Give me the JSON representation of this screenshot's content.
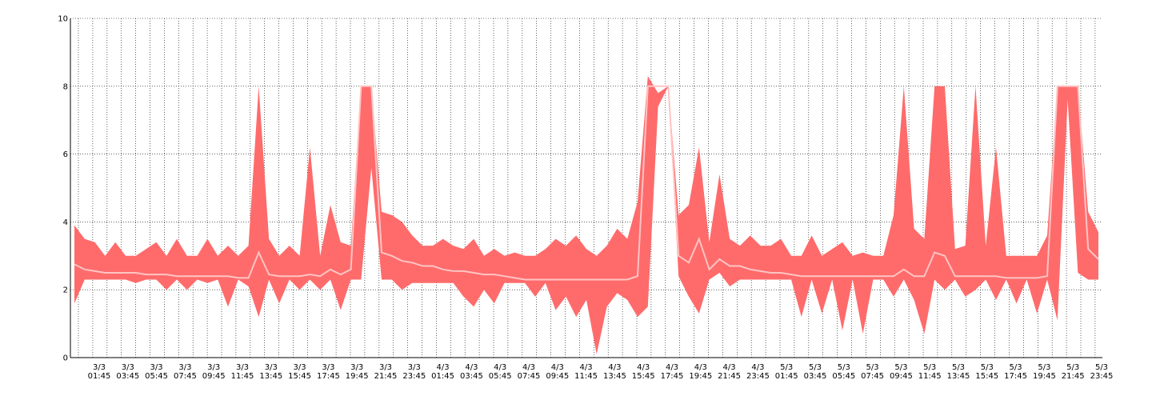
{
  "chart_data": {
    "type": "area",
    "title": "",
    "xlabel": "",
    "ylabel": "",
    "ylim": [
      0,
      10
    ],
    "yticks": [
      0,
      2,
      4,
      6,
      8,
      10
    ],
    "grid": true,
    "legend": "none",
    "colors": {
      "band": "#ff6b6b",
      "line": "#ffc4c4",
      "grid": "#000000",
      "axis": "#000000"
    },
    "x_ticks": [
      "3/3 01:45",
      "3/3 03:45",
      "3/3 05:45",
      "3/3 07:45",
      "3/3 09:45",
      "3/3 11:45",
      "3/3 13:45",
      "3/3 15:45",
      "3/3 17:45",
      "3/3 19:45",
      "3/3 21:45",
      "3/3 23:45",
      "4/3 01:45",
      "4/3 03:45",
      "4/3 05:45",
      "4/3 07:45",
      "4/3 09:45",
      "4/3 11:45",
      "4/3 13:45",
      "4/3 15:45",
      "4/3 17:45",
      "4/3 19:45",
      "4/3 21:45",
      "4/3 23:45",
      "5/3 01:45",
      "5/3 03:45",
      "5/3 05:45",
      "5/3 07:45",
      "5/3 09:45",
      "5/3 11:45",
      "5/3 13:45",
      "5/3 15:45",
      "5/3 17:45",
      "5/3 19:45",
      "5/3 21:45",
      "5/3 23:45"
    ],
    "series": [
      {
        "role": "max",
        "points": [
          [
            0,
            3.9
          ],
          [
            1,
            3.5
          ],
          [
            2,
            3.4
          ],
          [
            3,
            3.0
          ],
          [
            4,
            3.4
          ],
          [
            5,
            3.0
          ],
          [
            6,
            3.0
          ],
          [
            7,
            3.2
          ],
          [
            8,
            3.4
          ],
          [
            9,
            3.0
          ],
          [
            10,
            3.5
          ],
          [
            11,
            3.0
          ],
          [
            12,
            3.0
          ],
          [
            13,
            3.5
          ],
          [
            14,
            3.0
          ],
          [
            15,
            3.3
          ],
          [
            16,
            3.0
          ],
          [
            17,
            3.3
          ],
          [
            18,
            8.0
          ],
          [
            19,
            3.5
          ],
          [
            20,
            3.0
          ],
          [
            21,
            3.3
          ],
          [
            22,
            3.0
          ],
          [
            23,
            6.2
          ],
          [
            24,
            3.0
          ],
          [
            25,
            4.5
          ],
          [
            26,
            3.4
          ],
          [
            27,
            3.3
          ],
          [
            28,
            8.0
          ],
          [
            29,
            8.0
          ],
          [
            30,
            4.3
          ],
          [
            31,
            4.2
          ],
          [
            32,
            4.0
          ],
          [
            33,
            3.6
          ],
          [
            34,
            3.3
          ],
          [
            35,
            3.3
          ],
          [
            36,
            3.5
          ],
          [
            37,
            3.3
          ],
          [
            38,
            3.2
          ],
          [
            39,
            3.5
          ],
          [
            40,
            3.0
          ],
          [
            41,
            3.2
          ],
          [
            42,
            3.0
          ],
          [
            43,
            3.1
          ],
          [
            44,
            3.0
          ],
          [
            45,
            3.0
          ],
          [
            46,
            3.2
          ],
          [
            47,
            3.5
          ],
          [
            48,
            3.3
          ],
          [
            49,
            3.6
          ],
          [
            50,
            3.2
          ],
          [
            51,
            3.0
          ],
          [
            52,
            3.3
          ],
          [
            53,
            3.8
          ],
          [
            54,
            3.5
          ],
          [
            55,
            4.6
          ],
          [
            56,
            8.3
          ],
          [
            57,
            7.8
          ],
          [
            58,
            8.0
          ],
          [
            59,
            4.2
          ],
          [
            60,
            4.5
          ],
          [
            61,
            6.2
          ],
          [
            62,
            3.4
          ],
          [
            63,
            5.4
          ],
          [
            64,
            3.5
          ],
          [
            65,
            3.3
          ],
          [
            66,
            3.6
          ],
          [
            67,
            3.3
          ],
          [
            68,
            3.3
          ],
          [
            69,
            3.5
          ],
          [
            70,
            3.0
          ],
          [
            71,
            3.0
          ],
          [
            72,
            3.6
          ],
          [
            73,
            3.0
          ],
          [
            74,
            3.2
          ],
          [
            75,
            3.4
          ],
          [
            76,
            3.0
          ],
          [
            77,
            3.1
          ],
          [
            78,
            3.0
          ],
          [
            79,
            3.0
          ],
          [
            80,
            4.2
          ],
          [
            81,
            8.0
          ],
          [
            82,
            3.8
          ],
          [
            83,
            3.5
          ],
          [
            84,
            8.0
          ],
          [
            85,
            8.0
          ],
          [
            86,
            3.2
          ],
          [
            87,
            3.3
          ],
          [
            88,
            8.0
          ],
          [
            89,
            3.3
          ],
          [
            90,
            6.2
          ],
          [
            91,
            3.0
          ],
          [
            92,
            3.0
          ],
          [
            93,
            3.0
          ],
          [
            94,
            3.0
          ],
          [
            95,
            3.6
          ],
          [
            96,
            8.0
          ],
          [
            97,
            8.0
          ],
          [
            98,
            8.0
          ],
          [
            99,
            4.3
          ],
          [
            100,
            3.7
          ]
        ]
      },
      {
        "role": "min",
        "points": [
          [
            0,
            1.6
          ],
          [
            1,
            2.3
          ],
          [
            2,
            2.3
          ],
          [
            3,
            2.3
          ],
          [
            4,
            2.3
          ],
          [
            5,
            2.3
          ],
          [
            6,
            2.2
          ],
          [
            7,
            2.3
          ],
          [
            8,
            2.3
          ],
          [
            9,
            2.0
          ],
          [
            10,
            2.3
          ],
          [
            11,
            2.0
          ],
          [
            12,
            2.3
          ],
          [
            13,
            2.2
          ],
          [
            14,
            2.3
          ],
          [
            15,
            1.5
          ],
          [
            16,
            2.3
          ],
          [
            17,
            2.1
          ],
          [
            18,
            1.2
          ],
          [
            19,
            2.3
          ],
          [
            20,
            1.6
          ],
          [
            21,
            2.3
          ],
          [
            22,
            2.0
          ],
          [
            23,
            2.3
          ],
          [
            24,
            2.0
          ],
          [
            25,
            2.3
          ],
          [
            26,
            1.4
          ],
          [
            27,
            2.3
          ],
          [
            28,
            2.3
          ],
          [
            29,
            5.6
          ],
          [
            30,
            2.3
          ],
          [
            31,
            2.3
          ],
          [
            32,
            2.0
          ],
          [
            33,
            2.2
          ],
          [
            34,
            2.2
          ],
          [
            35,
            2.2
          ],
          [
            36,
            2.2
          ],
          [
            37,
            2.2
          ],
          [
            38,
            1.8
          ],
          [
            39,
            1.5
          ],
          [
            40,
            2.0
          ],
          [
            41,
            1.6
          ],
          [
            42,
            2.2
          ],
          [
            43,
            2.2
          ],
          [
            44,
            2.2
          ],
          [
            45,
            1.8
          ],
          [
            46,
            2.2
          ],
          [
            47,
            1.4
          ],
          [
            48,
            1.8
          ],
          [
            49,
            1.2
          ],
          [
            50,
            1.7
          ],
          [
            51,
            0.1
          ],
          [
            52,
            1.5
          ],
          [
            53,
            1.9
          ],
          [
            54,
            1.7
          ],
          [
            55,
            1.2
          ],
          [
            56,
            1.5
          ],
          [
            57,
            7.4
          ],
          [
            58,
            8.0
          ],
          [
            59,
            2.4
          ],
          [
            60,
            1.8
          ],
          [
            61,
            1.3
          ],
          [
            62,
            2.3
          ],
          [
            63,
            2.5
          ],
          [
            64,
            2.1
          ],
          [
            65,
            2.3
          ],
          [
            66,
            2.3
          ],
          [
            67,
            2.3
          ],
          [
            68,
            2.3
          ],
          [
            69,
            2.3
          ],
          [
            70,
            2.3
          ],
          [
            71,
            1.2
          ],
          [
            72,
            2.3
          ],
          [
            73,
            1.3
          ],
          [
            74,
            2.3
          ],
          [
            75,
            0.8
          ],
          [
            76,
            2.3
          ],
          [
            77,
            0.7
          ],
          [
            78,
            2.3
          ],
          [
            79,
            2.3
          ],
          [
            80,
            1.8
          ],
          [
            81,
            2.3
          ],
          [
            82,
            1.7
          ],
          [
            83,
            0.7
          ],
          [
            84,
            2.3
          ],
          [
            85,
            2.0
          ],
          [
            86,
            2.3
          ],
          [
            87,
            1.8
          ],
          [
            88,
            2.0
          ],
          [
            89,
            2.3
          ],
          [
            90,
            1.7
          ],
          [
            91,
            2.3
          ],
          [
            92,
            1.6
          ],
          [
            93,
            2.3
          ],
          [
            94,
            1.3
          ],
          [
            95,
            2.3
          ],
          [
            96,
            1.1
          ],
          [
            97,
            7.6
          ],
          [
            98,
            2.5
          ],
          [
            99,
            2.3
          ],
          [
            100,
            2.3
          ]
        ]
      },
      {
        "role": "average",
        "points": [
          [
            0,
            2.75
          ],
          [
            1,
            2.6
          ],
          [
            2,
            2.55
          ],
          [
            3,
            2.5
          ],
          [
            4,
            2.5
          ],
          [
            5,
            2.5
          ],
          [
            6,
            2.5
          ],
          [
            7,
            2.45
          ],
          [
            8,
            2.45
          ],
          [
            9,
            2.45
          ],
          [
            10,
            2.4
          ],
          [
            11,
            2.4
          ],
          [
            12,
            2.4
          ],
          [
            13,
            2.4
          ],
          [
            14,
            2.4
          ],
          [
            15,
            2.4
          ],
          [
            16,
            2.35
          ],
          [
            17,
            2.35
          ],
          [
            18,
            3.1
          ],
          [
            19,
            2.45
          ],
          [
            20,
            2.4
          ],
          [
            21,
            2.4
          ],
          [
            22,
            2.4
          ],
          [
            23,
            2.45
          ],
          [
            24,
            2.4
          ],
          [
            25,
            2.6
          ],
          [
            26,
            2.45
          ],
          [
            27,
            2.6
          ],
          [
            28,
            8.0
          ],
          [
            29,
            8.0
          ],
          [
            30,
            3.1
          ],
          [
            31,
            3.0
          ],
          [
            32,
            2.85
          ],
          [
            33,
            2.8
          ],
          [
            34,
            2.7
          ],
          [
            35,
            2.7
          ],
          [
            36,
            2.6
          ],
          [
            37,
            2.55
          ],
          [
            38,
            2.55
          ],
          [
            39,
            2.5
          ],
          [
            40,
            2.45
          ],
          [
            41,
            2.45
          ],
          [
            42,
            2.4
          ],
          [
            43,
            2.35
          ],
          [
            44,
            2.3
          ],
          [
            45,
            2.3
          ],
          [
            46,
            2.3
          ],
          [
            47,
            2.3
          ],
          [
            48,
            2.3
          ],
          [
            49,
            2.3
          ],
          [
            50,
            2.3
          ],
          [
            51,
            2.3
          ],
          [
            52,
            2.3
          ],
          [
            53,
            2.3
          ],
          [
            54,
            2.3
          ],
          [
            55,
            2.4
          ],
          [
            56,
            8.0
          ],
          [
            57,
            8.0
          ],
          [
            58,
            8.0
          ],
          [
            59,
            3.0
          ],
          [
            60,
            2.8
          ],
          [
            61,
            3.5
          ],
          [
            62,
            2.6
          ],
          [
            63,
            2.9
          ],
          [
            64,
            2.7
          ],
          [
            65,
            2.7
          ],
          [
            66,
            2.6
          ],
          [
            67,
            2.55
          ],
          [
            68,
            2.5
          ],
          [
            69,
            2.5
          ],
          [
            70,
            2.45
          ],
          [
            71,
            2.4
          ],
          [
            72,
            2.4
          ],
          [
            73,
            2.4
          ],
          [
            74,
            2.4
          ],
          [
            75,
            2.4
          ],
          [
            76,
            2.4
          ],
          [
            77,
            2.4
          ],
          [
            78,
            2.4
          ],
          [
            79,
            2.4
          ],
          [
            80,
            2.4
          ],
          [
            81,
            2.6
          ],
          [
            82,
            2.4
          ],
          [
            83,
            2.4
          ],
          [
            84,
            3.1
          ],
          [
            85,
            3.0
          ],
          [
            86,
            2.4
          ],
          [
            87,
            2.4
          ],
          [
            88,
            2.4
          ],
          [
            89,
            2.4
          ],
          [
            90,
            2.4
          ],
          [
            91,
            2.35
          ],
          [
            92,
            2.35
          ],
          [
            93,
            2.35
          ],
          [
            94,
            2.35
          ],
          [
            95,
            2.4
          ],
          [
            96,
            8.0
          ],
          [
            97,
            8.0
          ],
          [
            98,
            8.0
          ],
          [
            99,
            3.2
          ],
          [
            100,
            2.9
          ]
        ]
      }
    ]
  }
}
